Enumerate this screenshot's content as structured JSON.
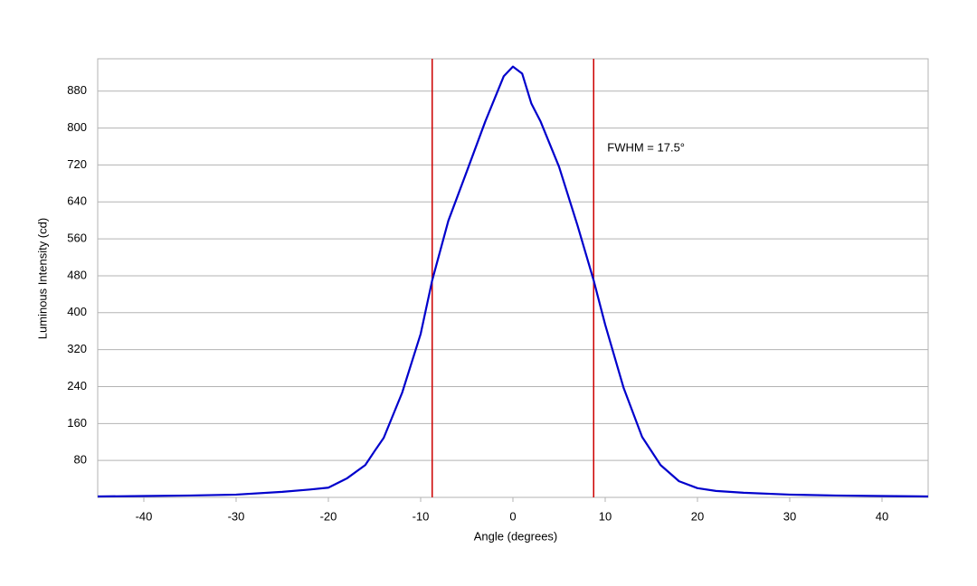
{
  "chart_data": {
    "type": "line",
    "x_label": "Angle (degrees)",
    "y_label": "Luminous Intensity (cd)",
    "annotation": "FWHM = 17.5°",
    "x": [
      -45,
      -40,
      -35,
      -30,
      -25,
      -22,
      -20,
      -18,
      -16,
      -15,
      -14,
      -12,
      -10,
      -8.75,
      -7,
      -5,
      -3,
      -2,
      -1,
      0,
      1,
      2,
      3,
      5,
      7,
      8.75,
      10,
      12,
      14,
      16,
      18,
      20,
      22,
      25,
      30,
      35,
      40,
      45
    ],
    "values": [
      2,
      3,
      4,
      6,
      12,
      17,
      21,
      41,
      70,
      100,
      129,
      227,
      354,
      470,
      599,
      706,
      814,
      863,
      912,
      933,
      918,
      853,
      814,
      716,
      589,
      470,
      374,
      237,
      131,
      70,
      35,
      20,
      14,
      10,
      6,
      4,
      3,
      2
    ],
    "color": "#0000cc",
    "vlines": [
      -8.75,
      8.75
    ],
    "vline_color": "#cc0000",
    "xlim": [
      -45,
      45
    ],
    "xticks": [
      -40,
      -30,
      -20,
      -10,
      0,
      10,
      20,
      30,
      40
    ],
    "ylim": [
      0,
      950
    ],
    "yticks": [
      80,
      160,
      240,
      320,
      400,
      480,
      560,
      640,
      720,
      800,
      880
    ],
    "grid": true
  }
}
